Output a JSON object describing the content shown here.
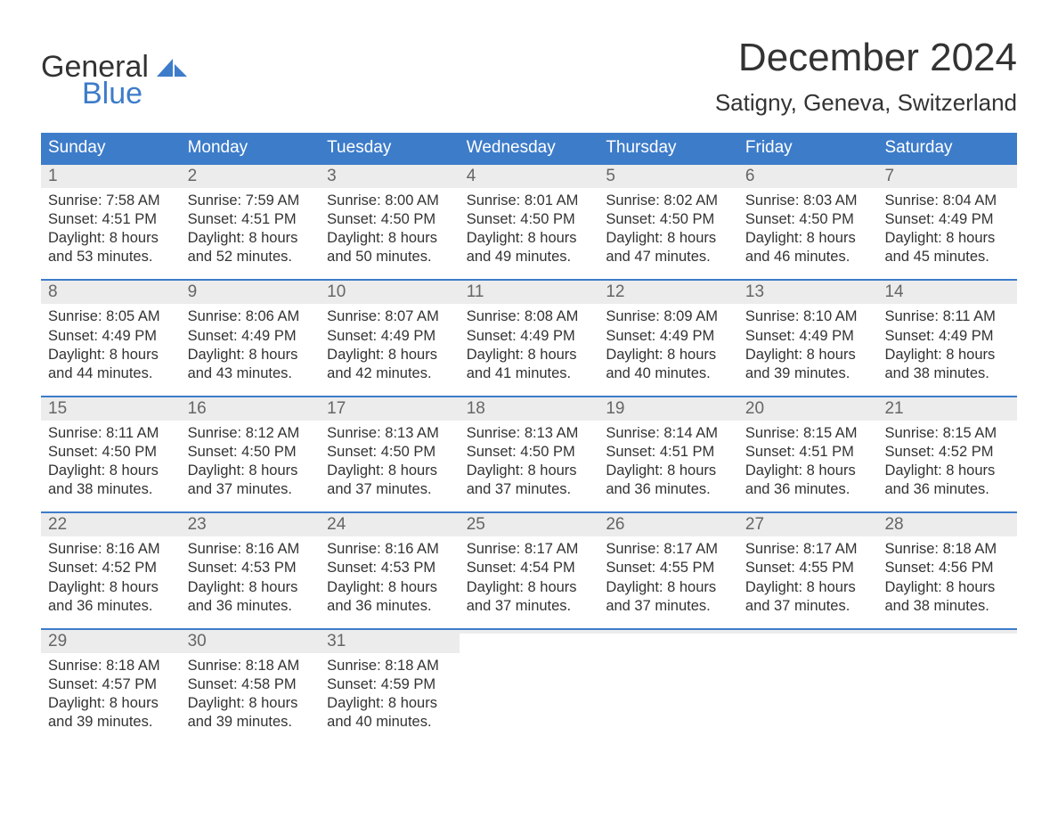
{
  "logo": {
    "top": "General",
    "bottom": "Blue"
  },
  "title": "December 2024",
  "location": "Satigny, Geneva, Switzerland",
  "colors": {
    "header_bg": "#3d7cc9",
    "header_text": "#ffffff",
    "daynum_bg": "#ececec",
    "daynum_text": "#666666",
    "body_text": "#333333",
    "week_border": "#3d7cc9"
  },
  "weekdays": [
    "Sunday",
    "Monday",
    "Tuesday",
    "Wednesday",
    "Thursday",
    "Friday",
    "Saturday"
  ],
  "weeks": [
    [
      {
        "n": "1",
        "sunrise": "Sunrise: 7:58 AM",
        "sunset": "Sunset: 4:51 PM",
        "day1": "Daylight: 8 hours",
        "day2": "and 53 minutes."
      },
      {
        "n": "2",
        "sunrise": "Sunrise: 7:59 AM",
        "sunset": "Sunset: 4:51 PM",
        "day1": "Daylight: 8 hours",
        "day2": "and 52 minutes."
      },
      {
        "n": "3",
        "sunrise": "Sunrise: 8:00 AM",
        "sunset": "Sunset: 4:50 PM",
        "day1": "Daylight: 8 hours",
        "day2": "and 50 minutes."
      },
      {
        "n": "4",
        "sunrise": "Sunrise: 8:01 AM",
        "sunset": "Sunset: 4:50 PM",
        "day1": "Daylight: 8 hours",
        "day2": "and 49 minutes."
      },
      {
        "n": "5",
        "sunrise": "Sunrise: 8:02 AM",
        "sunset": "Sunset: 4:50 PM",
        "day1": "Daylight: 8 hours",
        "day2": "and 47 minutes."
      },
      {
        "n": "6",
        "sunrise": "Sunrise: 8:03 AM",
        "sunset": "Sunset: 4:50 PM",
        "day1": "Daylight: 8 hours",
        "day2": "and 46 minutes."
      },
      {
        "n": "7",
        "sunrise": "Sunrise: 8:04 AM",
        "sunset": "Sunset: 4:49 PM",
        "day1": "Daylight: 8 hours",
        "day2": "and 45 minutes."
      }
    ],
    [
      {
        "n": "8",
        "sunrise": "Sunrise: 8:05 AM",
        "sunset": "Sunset: 4:49 PM",
        "day1": "Daylight: 8 hours",
        "day2": "and 44 minutes."
      },
      {
        "n": "9",
        "sunrise": "Sunrise: 8:06 AM",
        "sunset": "Sunset: 4:49 PM",
        "day1": "Daylight: 8 hours",
        "day2": "and 43 minutes."
      },
      {
        "n": "10",
        "sunrise": "Sunrise: 8:07 AM",
        "sunset": "Sunset: 4:49 PM",
        "day1": "Daylight: 8 hours",
        "day2": "and 42 minutes."
      },
      {
        "n": "11",
        "sunrise": "Sunrise: 8:08 AM",
        "sunset": "Sunset: 4:49 PM",
        "day1": "Daylight: 8 hours",
        "day2": "and 41 minutes."
      },
      {
        "n": "12",
        "sunrise": "Sunrise: 8:09 AM",
        "sunset": "Sunset: 4:49 PM",
        "day1": "Daylight: 8 hours",
        "day2": "and 40 minutes."
      },
      {
        "n": "13",
        "sunrise": "Sunrise: 8:10 AM",
        "sunset": "Sunset: 4:49 PM",
        "day1": "Daylight: 8 hours",
        "day2": "and 39 minutes."
      },
      {
        "n": "14",
        "sunrise": "Sunrise: 8:11 AM",
        "sunset": "Sunset: 4:49 PM",
        "day1": "Daylight: 8 hours",
        "day2": "and 38 minutes."
      }
    ],
    [
      {
        "n": "15",
        "sunrise": "Sunrise: 8:11 AM",
        "sunset": "Sunset: 4:50 PM",
        "day1": "Daylight: 8 hours",
        "day2": "and 38 minutes."
      },
      {
        "n": "16",
        "sunrise": "Sunrise: 8:12 AM",
        "sunset": "Sunset: 4:50 PM",
        "day1": "Daylight: 8 hours",
        "day2": "and 37 minutes."
      },
      {
        "n": "17",
        "sunrise": "Sunrise: 8:13 AM",
        "sunset": "Sunset: 4:50 PM",
        "day1": "Daylight: 8 hours",
        "day2": "and 37 minutes."
      },
      {
        "n": "18",
        "sunrise": "Sunrise: 8:13 AM",
        "sunset": "Sunset: 4:50 PM",
        "day1": "Daylight: 8 hours",
        "day2": "and 37 minutes."
      },
      {
        "n": "19",
        "sunrise": "Sunrise: 8:14 AM",
        "sunset": "Sunset: 4:51 PM",
        "day1": "Daylight: 8 hours",
        "day2": "and 36 minutes."
      },
      {
        "n": "20",
        "sunrise": "Sunrise: 8:15 AM",
        "sunset": "Sunset: 4:51 PM",
        "day1": "Daylight: 8 hours",
        "day2": "and 36 minutes."
      },
      {
        "n": "21",
        "sunrise": "Sunrise: 8:15 AM",
        "sunset": "Sunset: 4:52 PM",
        "day1": "Daylight: 8 hours",
        "day2": "and 36 minutes."
      }
    ],
    [
      {
        "n": "22",
        "sunrise": "Sunrise: 8:16 AM",
        "sunset": "Sunset: 4:52 PM",
        "day1": "Daylight: 8 hours",
        "day2": "and 36 minutes."
      },
      {
        "n": "23",
        "sunrise": "Sunrise: 8:16 AM",
        "sunset": "Sunset: 4:53 PM",
        "day1": "Daylight: 8 hours",
        "day2": "and 36 minutes."
      },
      {
        "n": "24",
        "sunrise": "Sunrise: 8:16 AM",
        "sunset": "Sunset: 4:53 PM",
        "day1": "Daylight: 8 hours",
        "day2": "and 36 minutes."
      },
      {
        "n": "25",
        "sunrise": "Sunrise: 8:17 AM",
        "sunset": "Sunset: 4:54 PM",
        "day1": "Daylight: 8 hours",
        "day2": "and 37 minutes."
      },
      {
        "n": "26",
        "sunrise": "Sunrise: 8:17 AM",
        "sunset": "Sunset: 4:55 PM",
        "day1": "Daylight: 8 hours",
        "day2": "and 37 minutes."
      },
      {
        "n": "27",
        "sunrise": "Sunrise: 8:17 AM",
        "sunset": "Sunset: 4:55 PM",
        "day1": "Daylight: 8 hours",
        "day2": "and 37 minutes."
      },
      {
        "n": "28",
        "sunrise": "Sunrise: 8:18 AM",
        "sunset": "Sunset: 4:56 PM",
        "day1": "Daylight: 8 hours",
        "day2": "and 38 minutes."
      }
    ],
    [
      {
        "n": "29",
        "sunrise": "Sunrise: 8:18 AM",
        "sunset": "Sunset: 4:57 PM",
        "day1": "Daylight: 8 hours",
        "day2": "and 39 minutes."
      },
      {
        "n": "30",
        "sunrise": "Sunrise: 8:18 AM",
        "sunset": "Sunset: 4:58 PM",
        "day1": "Daylight: 8 hours",
        "day2": "and 39 minutes."
      },
      {
        "n": "31",
        "sunrise": "Sunrise: 8:18 AM",
        "sunset": "Sunset: 4:59 PM",
        "day1": "Daylight: 8 hours",
        "day2": "and 40 minutes."
      },
      {
        "empty": true
      },
      {
        "empty": true
      },
      {
        "empty": true
      },
      {
        "empty": true
      }
    ]
  ]
}
